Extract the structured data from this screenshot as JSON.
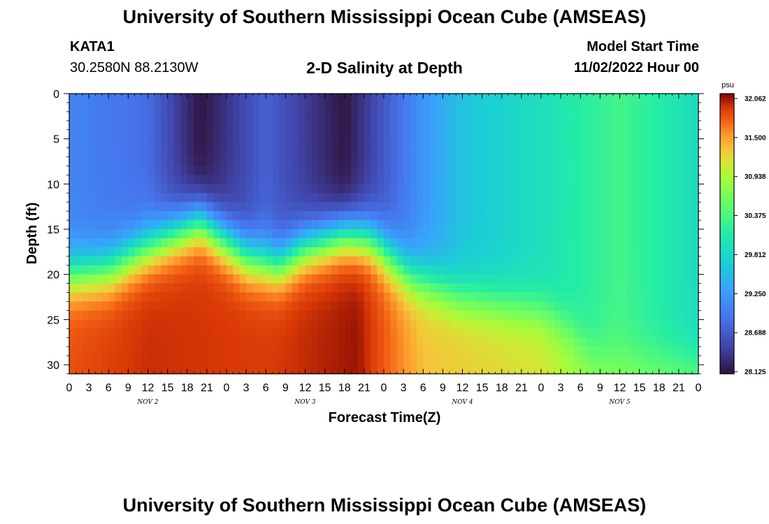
{
  "header": {
    "title": "University of Southern Mississippi Ocean Cube (AMSEAS)",
    "station": "KATA1",
    "coords": "30.2580N  88.2130W",
    "subtitle": "2-D Salinity at Depth",
    "model_label": "Model Start Time",
    "model_time": "11/02/2022 Hour 00"
  },
  "footer": {
    "title": "University of Southern Mississippi Ocean Cube (AMSEAS)"
  },
  "chart_data": {
    "type": "heatmap",
    "xlabel": "Forecast Time(Z)",
    "ylabel": "Depth (ft)",
    "xlim": [
      0,
      96
    ],
    "ylim": [
      31,
      0
    ],
    "x_tick_labels": [
      "0",
      "3",
      "6",
      "9",
      "12",
      "15",
      "18",
      "21",
      "0",
      "3",
      "6",
      "9",
      "12",
      "15",
      "18",
      "21",
      "0",
      "3",
      "6",
      "9",
      "12",
      "15",
      "18",
      "21",
      "0",
      "3",
      "6",
      "9",
      "12",
      "15",
      "18",
      "21",
      "0"
    ],
    "y_ticks": [
      0,
      5,
      10,
      15,
      20,
      25,
      30
    ],
    "date_labels": [
      {
        "label": "NOV 2",
        "hour": 12
      },
      {
        "label": "NOV 3",
        "hour": 36
      },
      {
        "label": "NOV 4",
        "hour": 60
      },
      {
        "label": "NOV 5",
        "hour": 84
      }
    ],
    "colorbar": {
      "unit": "psu",
      "min": 28.125,
      "max": 32.062,
      "tick_labels": [
        "32.062",
        "31.500",
        "30.938",
        "30.375",
        "29.812",
        "29.250",
        "28.688",
        "28.125"
      ]
    },
    "halocline_depth_ft": [
      {
        "hour": 0,
        "depth": 20
      },
      {
        "hour": 6,
        "depth": 19.5
      },
      {
        "hour": 12,
        "depth": 17
      },
      {
        "hour": 20,
        "depth": 14
      },
      {
        "hour": 27,
        "depth": 18
      },
      {
        "hour": 32,
        "depth": 19
      },
      {
        "hour": 36,
        "depth": 17
      },
      {
        "hour": 42,
        "depth": 15.5
      },
      {
        "hour": 46,
        "depth": 16
      },
      {
        "hour": 52,
        "depth": 20
      },
      {
        "hour": 60,
        "depth": 22.5
      },
      {
        "hour": 72,
        "depth": 24
      },
      {
        "hour": 76,
        "depth": 26
      },
      {
        "hour": 80,
        "depth": 29
      },
      {
        "hour": 96,
        "depth": 29.5
      }
    ],
    "surface_salinity_psu": [
      {
        "hour": 0,
        "value": 29.05
      },
      {
        "hour": 12,
        "value": 28.85
      },
      {
        "hour": 20,
        "value": 28.15
      },
      {
        "hour": 30,
        "value": 28.75
      },
      {
        "hour": 42,
        "value": 28.15
      },
      {
        "hour": 54,
        "value": 29.2
      },
      {
        "hour": 60,
        "value": 29.6
      },
      {
        "hour": 72,
        "value": 29.9
      },
      {
        "hour": 84,
        "value": 30.3
      },
      {
        "hour": 96,
        "value": 29.85
      }
    ],
    "bottom_salinity_psu": [
      {
        "hour": 0,
        "value": 31.75
      },
      {
        "hour": 12,
        "value": 31.9
      },
      {
        "hour": 30,
        "value": 31.85
      },
      {
        "hour": 44,
        "value": 32.0
      },
      {
        "hour": 54,
        "value": 31.3
      },
      {
        "hour": 72,
        "value": 31.1
      },
      {
        "hour": 80,
        "value": 30.8
      },
      {
        "hour": 96,
        "value": 30.55
      }
    ]
  }
}
